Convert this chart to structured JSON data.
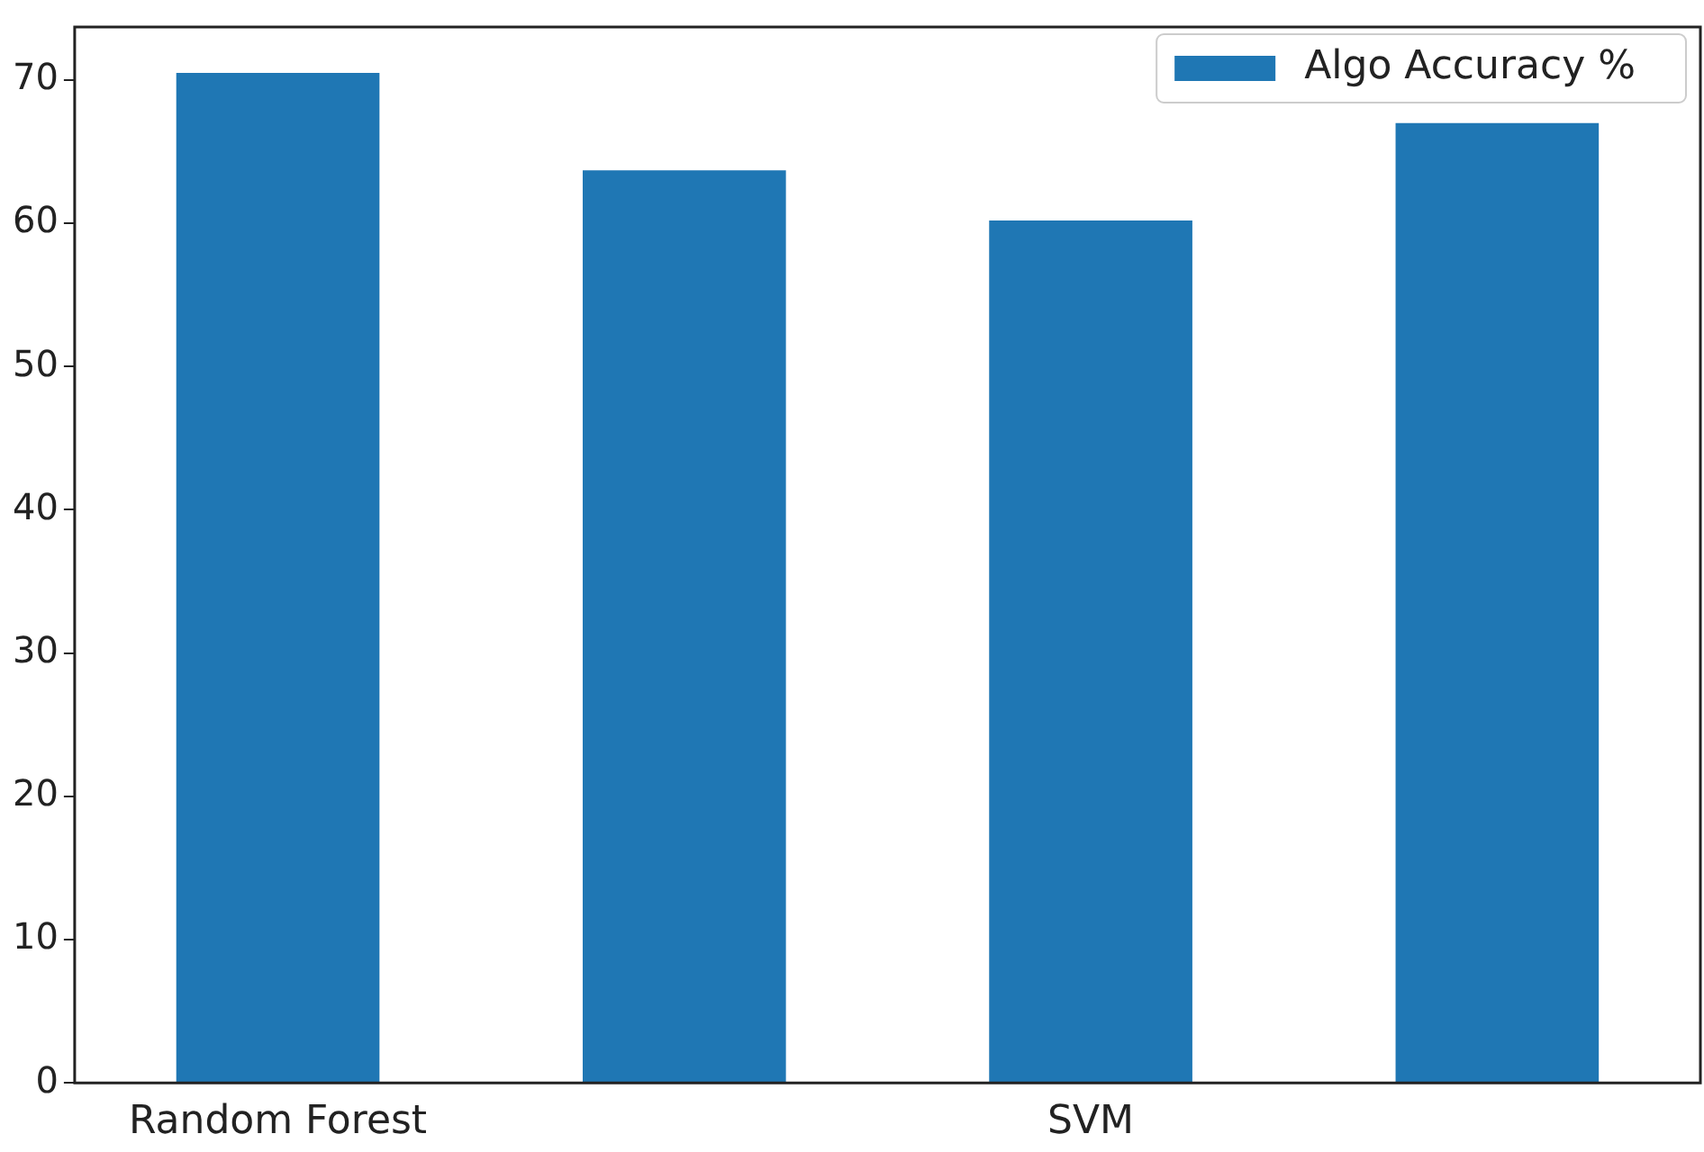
{
  "chart_data": {
    "type": "bar",
    "categories": [
      "Random Forest",
      null,
      "SVM",
      null
    ],
    "series": [
      {
        "name": "Algo Accuracy %",
        "color": "#1f77b4",
        "values": [
          70.5,
          63.7,
          60.2,
          67
        ]
      }
    ],
    "ylim": [
      0,
      73.7
    ],
    "yticks": [
      0,
      10,
      20,
      30,
      40,
      50,
      60,
      70
    ],
    "grid": false,
    "legend": "top right"
  }
}
